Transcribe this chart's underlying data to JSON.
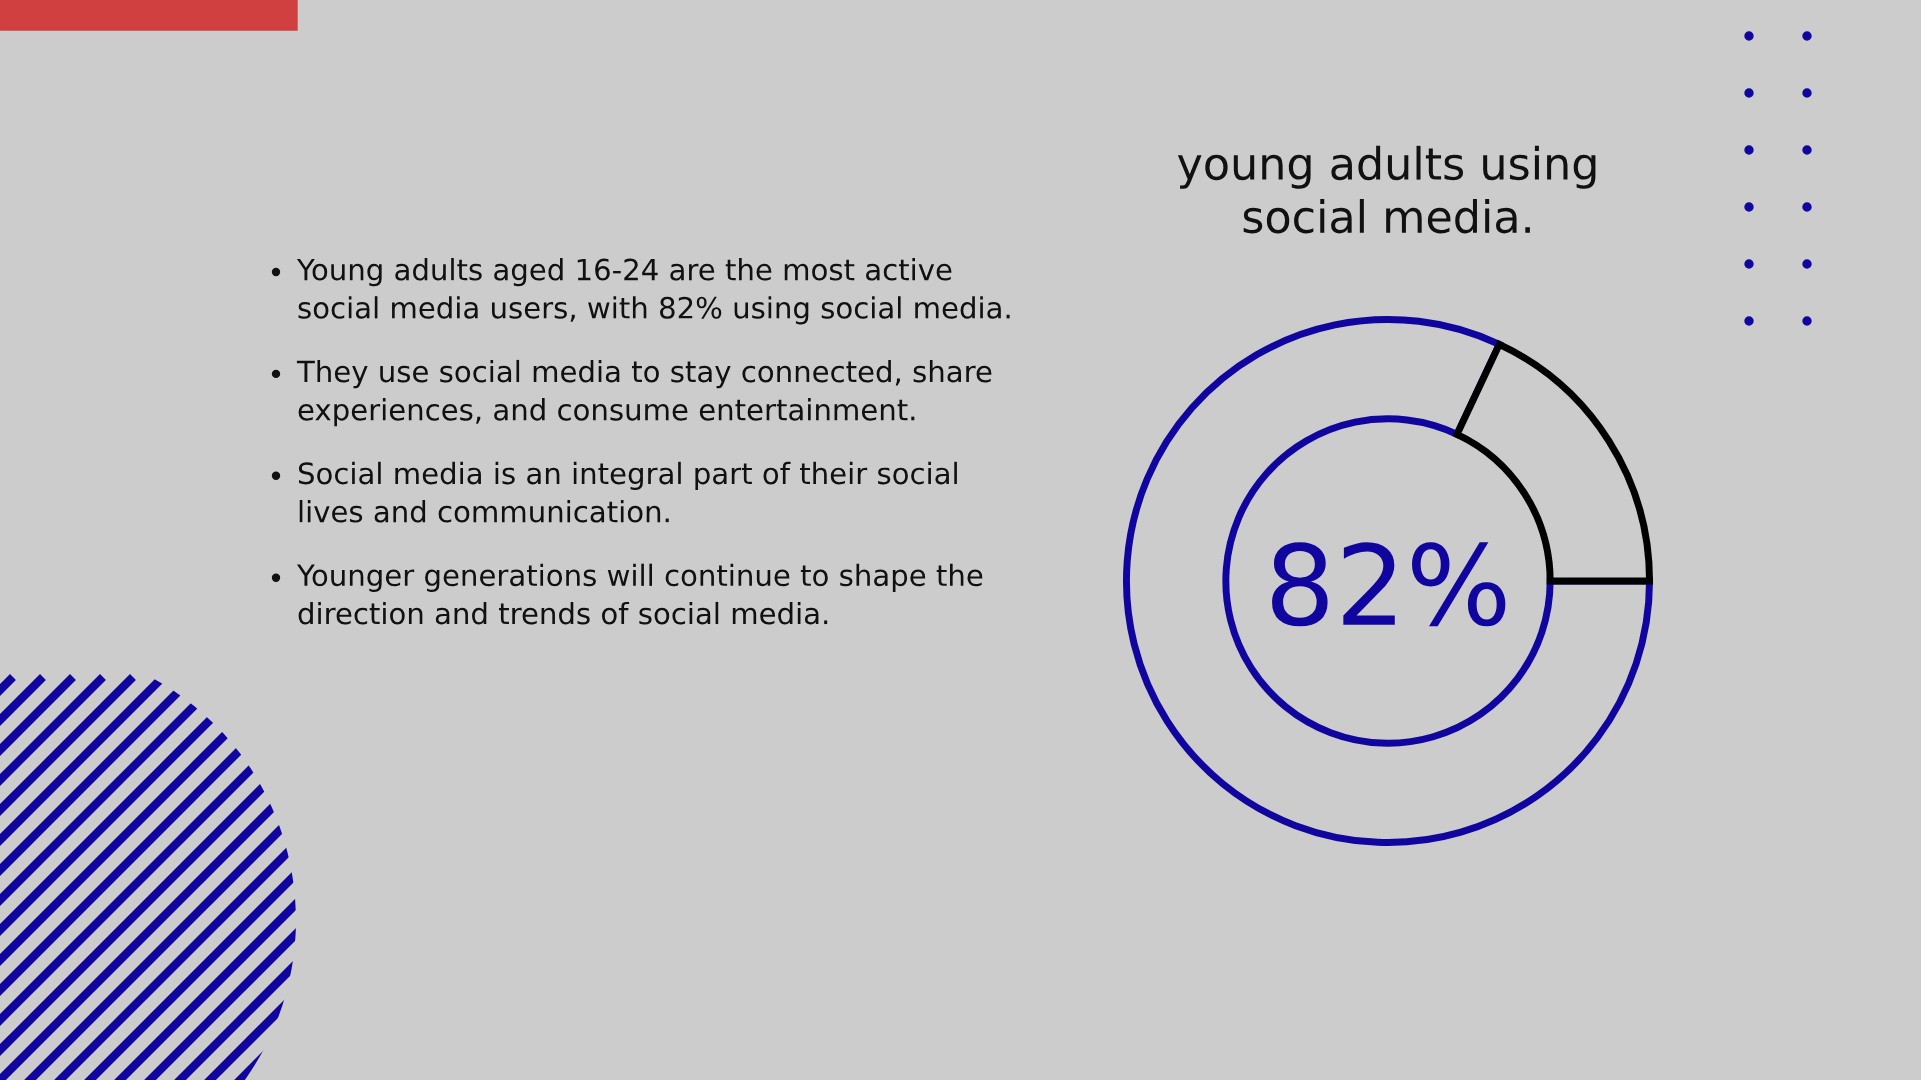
{
  "chart_data": [
    {
      "type": "other",
      "annotations": [
        "Young adults aged 16-24 are the most active social media users, with 82% using social media.",
        "They use social media to stay connected, share experiences, and consume entertainment.",
        "Social media is an integral part of their social lives and communication.",
        "Younger generations will continue to shape the direction and trends of social media."
      ]
    },
    {
      "type": "donut",
      "title": "young adults using social media.",
      "categories": [
        null,
        null
      ],
      "values": [
        82,
        18
      ],
      "colors": [
        "#10069f",
        "#000000"
      ],
      "annotations": [
        "82%"
      ]
    }
  ]
}
